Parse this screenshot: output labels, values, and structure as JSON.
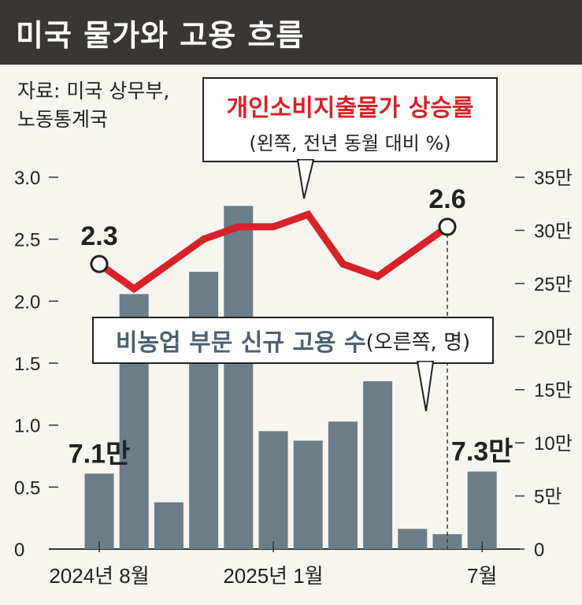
{
  "header": {
    "title": "미국 물가와 고용 흐름"
  },
  "source": {
    "line1": "자료: 미국 상무부,",
    "line2": "노동통계국"
  },
  "callouts": {
    "pce_title": "개인소비지출물가 상승률",
    "pce_sub": "(왼쪽, 전년 동월 대비 %)",
    "jobs_title": "비농업 부문 신규 고용 수",
    "jobs_sub": "(오른쪽, 명)"
  },
  "colors": {
    "line": "#d7222a",
    "bar": "#6b7d87",
    "header_bg": "#3a3633"
  },
  "chart_data": {
    "type": "bar+line",
    "categories": [
      "2024-08",
      "2024-09",
      "2024-10",
      "2024-11",
      "2024-12",
      "2025-01",
      "2025-02",
      "2025-03",
      "2025-04",
      "2025-05",
      "2025-06",
      "2025-07"
    ],
    "x_tick_labels": [
      {
        "index": 0,
        "label": "2024년 8월"
      },
      {
        "index": 5,
        "label": "2025년 1월"
      },
      {
        "index": 11,
        "label": "7월"
      }
    ],
    "left_axis": {
      "ticks": [
        "0",
        "0.5",
        "1.0",
        "1.5",
        "2.0",
        "2.5",
        "3.0"
      ],
      "range": [
        0,
        3.0
      ]
    },
    "right_axis": {
      "ticks": [
        "0",
        "5만",
        "10만",
        "15만",
        "20만",
        "25만",
        "30만",
        "35만"
      ],
      "range": [
        0,
        350000
      ]
    },
    "line_series": {
      "values": [
        2.3,
        2.1,
        2.3,
        2.5,
        2.6,
        2.6,
        2.7,
        2.3,
        2.2,
        2.4,
        2.6
      ],
      "start_index": 0,
      "data_labels": [
        {
          "index": 0,
          "label": "2.3"
        },
        {
          "index": 10,
          "label": "2.6"
        }
      ]
    },
    "bar_series": {
      "values": [
        71000,
        240000,
        44000,
        261000,
        323000,
        111000,
        102000,
        120000,
        158000,
        19000,
        14000,
        73000
      ],
      "data_labels": [
        {
          "index": 0,
          "label": "7.1만"
        },
        {
          "index": 11,
          "label": "7.3만"
        }
      ]
    }
  }
}
